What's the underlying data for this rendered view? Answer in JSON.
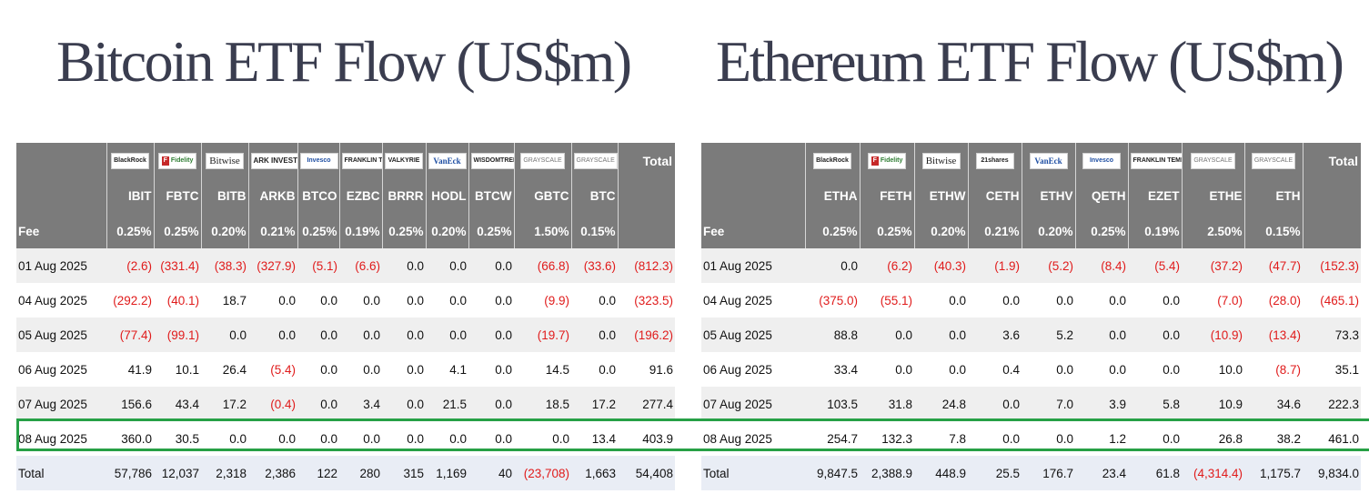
{
  "btc": {
    "title": "Bitcoin ETF Flow (US$m)",
    "logos": [
      {
        "name": "blackrock-logo",
        "text": "BlackRock"
      },
      {
        "name": "fidelity-logo",
        "text": "Fidelity"
      },
      {
        "name": "bitwise-logo",
        "text": "Bitwise"
      },
      {
        "name": "ark-logo",
        "text": "ARK INVEST"
      },
      {
        "name": "invesco-logo",
        "text": "Invesco"
      },
      {
        "name": "franklin-templeton-logo",
        "text": "FRANKLIN TEMPLETON"
      },
      {
        "name": "valkyrie-logo",
        "text": "VALKYRIE"
      },
      {
        "name": "vaneck-logo",
        "text": "VanEck"
      },
      {
        "name": "wisdomtree-logo",
        "text": "WISDOMTREE"
      },
      {
        "name": "grayscale-logo",
        "text": "GRAYSCALE"
      },
      {
        "name": "grayscale-logo-2",
        "text": "GRAYSCALE"
      }
    ],
    "total_label": "Total",
    "tickers": [
      "IBIT",
      "FBTC",
      "BITB",
      "ARKB",
      "BTCO",
      "EZBC",
      "BRRR",
      "HODL",
      "BTCW",
      "GBTC",
      "BTC"
    ],
    "fee_label": "Fee",
    "fees": [
      "0.25%",
      "0.25%",
      "0.20%",
      "0.21%",
      "0.25%",
      "0.19%",
      "0.25%",
      "0.20%",
      "0.25%",
      "1.50%",
      "0.15%"
    ],
    "rows": [
      {
        "date": "01 Aug 2025",
        "values": [
          "(2.6)",
          "(331.4)",
          "(38.3)",
          "(327.9)",
          "(5.1)",
          "(6.6)",
          "0.0",
          "0.0",
          "0.0",
          "(66.8)",
          "(33.6)"
        ],
        "total": "(812.3)"
      },
      {
        "date": "04 Aug 2025",
        "values": [
          "(292.2)",
          "(40.1)",
          "18.7",
          "0.0",
          "0.0",
          "0.0",
          "0.0",
          "0.0",
          "0.0",
          "(9.9)",
          "0.0"
        ],
        "total": "(323.5)"
      },
      {
        "date": "05 Aug 2025",
        "values": [
          "(77.4)",
          "(99.1)",
          "0.0",
          "0.0",
          "0.0",
          "0.0",
          "0.0",
          "0.0",
          "0.0",
          "(19.7)",
          "0.0"
        ],
        "total": "(196.2)"
      },
      {
        "date": "06 Aug 2025",
        "values": [
          "41.9",
          "10.1",
          "26.4",
          "(5.4)",
          "0.0",
          "0.0",
          "0.0",
          "4.1",
          "0.0",
          "14.5",
          "0.0"
        ],
        "total": "91.6"
      },
      {
        "date": "07 Aug 2025",
        "values": [
          "156.6",
          "43.4",
          "17.2",
          "(0.4)",
          "0.0",
          "3.4",
          "0.0",
          "21.5",
          "0.0",
          "18.5",
          "17.2"
        ],
        "total": "277.4"
      },
      {
        "date": "08 Aug 2025",
        "values": [
          "360.0",
          "30.5",
          "0.0",
          "0.0",
          "0.0",
          "0.0",
          "0.0",
          "0.0",
          "0.0",
          "0.0",
          "13.4"
        ],
        "total": "403.9"
      }
    ],
    "totals": {
      "label": "Total",
      "values": [
        "57,786",
        "12,037",
        "2,318",
        "2,386",
        "122",
        "280",
        "315",
        "1,169",
        "40",
        "(23,708)",
        "1,663"
      ],
      "total": "54,408"
    }
  },
  "eth": {
    "title": "Ethereum ETF Flow (US$m)",
    "logos": [
      {
        "name": "blackrock-logo",
        "text": "BlackRock"
      },
      {
        "name": "fidelity-logo",
        "text": "Fidelity"
      },
      {
        "name": "bitwise-logo",
        "text": "Bitwise"
      },
      {
        "name": "21shares-logo",
        "text": "21shares"
      },
      {
        "name": "vaneck-logo",
        "text": "VanEck"
      },
      {
        "name": "invesco-logo",
        "text": "Invesco"
      },
      {
        "name": "franklin-templeton-logo",
        "text": "FRANKLIN TEMPLETON"
      },
      {
        "name": "grayscale-logo",
        "text": "GRAYSCALE"
      },
      {
        "name": "grayscale-logo-2",
        "text": "GRAYSCALE"
      }
    ],
    "total_label": "Total",
    "tickers": [
      "ETHA",
      "FETH",
      "ETHW",
      "CETH",
      "ETHV",
      "QETH",
      "EZET",
      "ETHE",
      "ETH"
    ],
    "fee_label": "Fee",
    "fees": [
      "0.25%",
      "0.25%",
      "0.20%",
      "0.21%",
      "0.20%",
      "0.25%",
      "0.19%",
      "2.50%",
      "0.15%"
    ],
    "rows": [
      {
        "date": "01 Aug 2025",
        "values": [
          "0.0",
          "(6.2)",
          "(40.3)",
          "(1.9)",
          "(5.2)",
          "(8.4)",
          "(5.4)",
          "(37.2)",
          "(47.7)"
        ],
        "total": "(152.3)"
      },
      {
        "date": "04 Aug 2025",
        "values": [
          "(375.0)",
          "(55.1)",
          "0.0",
          "0.0",
          "0.0",
          "0.0",
          "0.0",
          "(7.0)",
          "(28.0)"
        ],
        "total": "(465.1)"
      },
      {
        "date": "05 Aug 2025",
        "values": [
          "88.8",
          "0.0",
          "0.0",
          "3.6",
          "5.2",
          "0.0",
          "0.0",
          "(10.9)",
          "(13.4)"
        ],
        "total": "73.3"
      },
      {
        "date": "06 Aug 2025",
        "values": [
          "33.4",
          "0.0",
          "0.0",
          "0.4",
          "0.0",
          "0.0",
          "0.0",
          "10.0",
          "(8.7)"
        ],
        "total": "35.1"
      },
      {
        "date": "07 Aug 2025",
        "values": [
          "103.5",
          "31.8",
          "24.8",
          "0.0",
          "7.0",
          "3.9",
          "5.8",
          "10.9",
          "34.6"
        ],
        "total": "222.3"
      },
      {
        "date": "08 Aug 2025",
        "values": [
          "254.7",
          "132.3",
          "7.8",
          "0.0",
          "0.0",
          "1.2",
          "0.0",
          "26.8",
          "38.2"
        ],
        "total": "461.0"
      }
    ],
    "totals": {
      "label": "Total",
      "values": [
        "9,847.5",
        "2,388.9",
        "448.9",
        "25.5",
        "176.7",
        "23.4",
        "61.8",
        "(4,314.4)",
        "1,175.7"
      ],
      "total": "9,834.0"
    }
  },
  "colors": {
    "header_bg": "#7b7b7b",
    "negative": "#e01b1b",
    "highlight": "#27a046",
    "title": "#3a3d4f"
  }
}
